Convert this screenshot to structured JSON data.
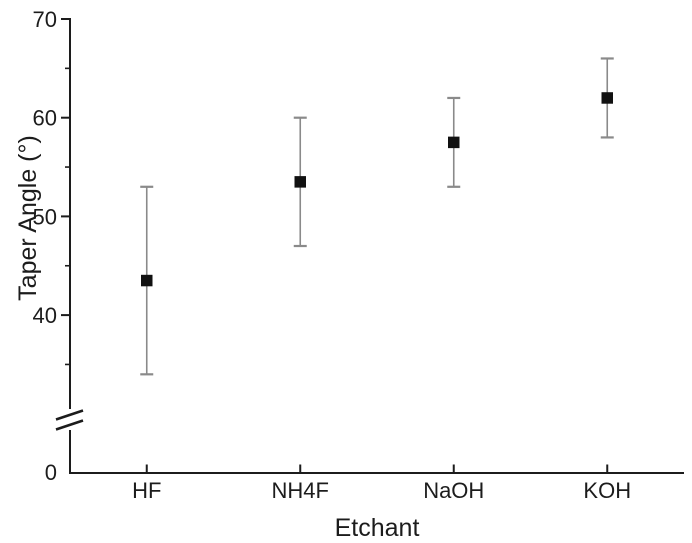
{
  "chart_data": {
    "type": "scatter",
    "title": "",
    "xlabel": "Etchant",
    "ylabel": "Taper Angle (°)",
    "categories": [
      "HF",
      "NH4F",
      "NaOH",
      "KOH"
    ],
    "series": [
      {
        "name": "Taper Angle",
        "values": [
          43.5,
          53.5,
          57.5,
          62
        ],
        "error_low": [
          34,
          47,
          53,
          58
        ],
        "error_high": [
          53,
          60,
          62,
          66
        ]
      }
    ],
    "y_axis": {
      "major_ticks": [
        70,
        60,
        50,
        40
      ],
      "minor_ticks": [
        65,
        55,
        45,
        35
      ],
      "origin_label": "0",
      "axis_break": true,
      "visible_range_top_segment": [
        30,
        70
      ]
    },
    "x_axis": {
      "tick_labels": [
        "HF",
        "NH4F",
        "NaOH",
        "KOH"
      ]
    },
    "grid": false,
    "legend": "none",
    "marker_shape": "square",
    "colors": {
      "marker": "#111111",
      "error_bar": "#8a8a8a",
      "axis": "#1c1c1c",
      "text": "#1c1c1c",
      "background": "#ffffff"
    }
  }
}
